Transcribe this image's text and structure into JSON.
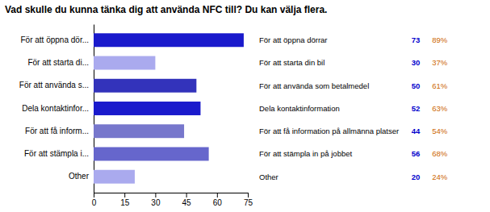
{
  "chart_data": {
    "type": "bar",
    "orientation": "horizontal",
    "title": "Vad skulle du kunna tänka dig att använda NFC till? Du kan välja flera.",
    "categories": [
      "För att öppna dör...",
      "För att starta di...",
      "För att använda s...",
      "Dela kontaktinfor...",
      "För att få inform...",
      "För att stämpla i...",
      "Other"
    ],
    "values": [
      73,
      30,
      50,
      52,
      44,
      56,
      20
    ],
    "colors": [
      "#1a1acc",
      "#aaaaee",
      "#3333bb",
      "#1a1acc",
      "#7777cc",
      "#6666cc",
      "#aaaaee"
    ],
    "xlim": [
      0,
      75
    ],
    "xticks": [
      0,
      15,
      30,
      45,
      60,
      75
    ],
    "summary": {
      "labels": [
        "För att öppna dörrar",
        "För att starta din bil",
        "För att använda som betalmedel",
        "Dela kontaktinformation",
        "För att få information på allmänna platser",
        "För att stämpla in på jobbet",
        "Other"
      ],
      "counts": {
        "values": [
          73,
          30,
          50,
          52,
          44,
          56,
          20
        ],
        "color": "#0000cc"
      },
      "shares": {
        "values": [
          89,
          37,
          61,
          63,
          54,
          68,
          24
        ],
        "value_labels": [
          "89%",
          "37%",
          "61%",
          "63%",
          "54%",
          "68%",
          "24%"
        ],
        "color": "#cc6600"
      }
    }
  }
}
